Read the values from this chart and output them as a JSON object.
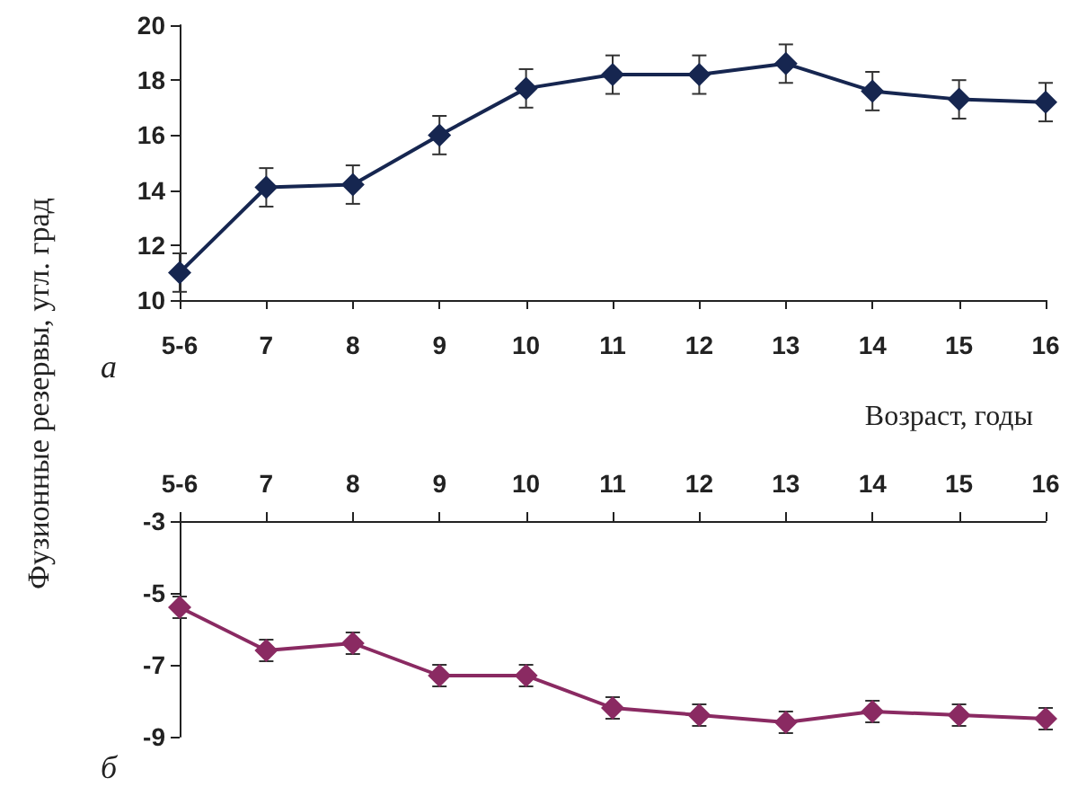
{
  "chart_data": [
    {
      "type": "line",
      "ylabel": "Фузионные резервы, угл. град",
      "annotations": [
        "а"
      ],
      "categories": [
        "5-6",
        "7",
        "8",
        "9",
        "10",
        "11",
        "12",
        "13",
        "14",
        "15",
        "16"
      ],
      "series": [
        {
          "color": "#162650",
          "values": [
            11.0,
            14.1,
            14.2,
            16.0,
            17.7,
            18.2,
            18.2,
            18.6,
            17.6,
            17.3,
            17.2
          ],
          "errors": [
            0.7,
            0.7,
            0.7,
            0.7,
            0.7,
            0.7,
            0.7,
            0.7,
            0.7,
            0.7,
            0.7
          ]
        }
      ],
      "ylim": [
        10,
        20
      ],
      "yticks": [
        10,
        12,
        14,
        16,
        18,
        20
      ],
      "marker": "diamond",
      "line_style": "solid"
    },
    {
      "type": "line",
      "xlabel": "Возраст, годы",
      "annotations": [
        "б"
      ],
      "categories": [
        "5-6",
        "7",
        "8",
        "9",
        "10",
        "11",
        "12",
        "13",
        "14",
        "15",
        "16"
      ],
      "series": [
        {
          "color": "#8a2a62",
          "values": [
            -5.4,
            -6.6,
            -6.4,
            -7.3,
            -7.3,
            -8.2,
            -8.4,
            -8.6,
            -8.3,
            -8.4,
            -8.5
          ],
          "errors": [
            0.3,
            0.3,
            0.3,
            0.3,
            0.3,
            0.3,
            0.3,
            0.3,
            0.3,
            0.3,
            0.3
          ]
        }
      ],
      "ylim": [
        -9,
        -3
      ],
      "yticks": [
        -3,
        -5,
        -7,
        -9
      ],
      "marker": "diamond",
      "line_style": "solid"
    }
  ]
}
